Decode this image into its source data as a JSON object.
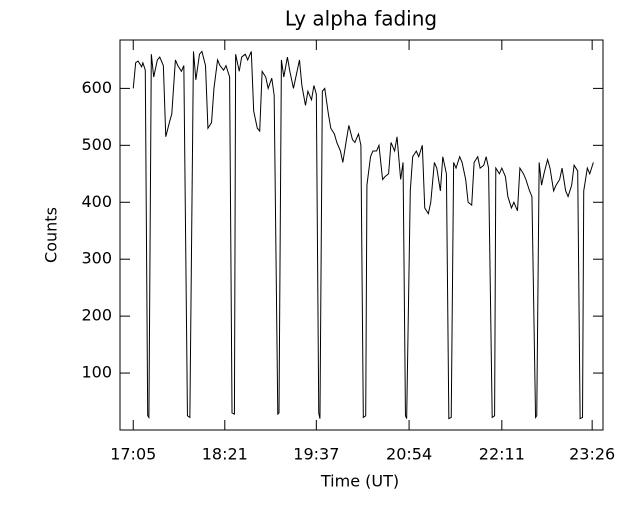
{
  "chart_data": {
    "type": "line",
    "title": "Ly alpha fading",
    "x_label": "Time (UT)",
    "y_label": "Counts",
    "color": "#000000",
    "xlim": [
      1014,
      1415
    ],
    "ylim": [
      0,
      685
    ],
    "xticks": [
      {
        "value": 1025,
        "label": "17:05"
      },
      {
        "value": 1101,
        "label": "18:21"
      },
      {
        "value": 1177,
        "label": "19:37"
      },
      {
        "value": 1254,
        "label": "20:54"
      },
      {
        "value": 1331,
        "label": "22:11"
      },
      {
        "value": 1406,
        "label": "23:26"
      }
    ],
    "yticks": [
      100,
      200,
      300,
      400,
      500,
      600
    ],
    "x": [
      1025,
      1027,
      1029,
      1032,
      1033,
      1035,
      1037,
      1038,
      1040,
      1042,
      1045,
      1047,
      1050,
      1052,
      1055,
      1057,
      1060,
      1062,
      1065,
      1067,
      1070,
      1072,
      1075,
      1077,
      1080,
      1082,
      1085,
      1087,
      1090,
      1092,
      1095,
      1097,
      1100,
      1102,
      1105,
      1107,
      1109,
      1110,
      1113,
      1115,
      1118,
      1120,
      1123,
      1125,
      1128,
      1130,
      1132,
      1135,
      1137,
      1140,
      1142,
      1145,
      1146,
      1148,
      1150,
      1153,
      1155,
      1158,
      1160,
      1163,
      1165,
      1168,
      1170,
      1173,
      1175,
      1177,
      1179,
      1180,
      1182,
      1184,
      1187,
      1189,
      1192,
      1194,
      1197,
      1199,
      1202,
      1204,
      1207,
      1209,
      1212,
      1214,
      1216,
      1218,
      1219,
      1222,
      1224,
      1227,
      1229,
      1232,
      1234,
      1237,
      1239,
      1242,
      1244,
      1247,
      1249,
      1251,
      1252,
      1255,
      1257,
      1260,
      1262,
      1265,
      1267,
      1270,
      1272,
      1275,
      1277,
      1280,
      1282,
      1285,
      1287,
      1289,
      1291,
      1293,
      1296,
      1298,
      1301,
      1303,
      1306,
      1308,
      1311,
      1313,
      1316,
      1318,
      1320,
      1323,
      1325,
      1326,
      1329,
      1331,
      1334,
      1336,
      1339,
      1341,
      1344,
      1346,
      1349,
      1351,
      1354,
      1356,
      1359,
      1360,
      1362,
      1364,
      1366,
      1369,
      1371,
      1374,
      1376,
      1379,
      1381,
      1384,
      1386,
      1389,
      1391,
      1394,
      1396,
      1398,
      1399,
      1402,
      1404,
      1407
    ],
    "values": [
      600,
      645,
      648,
      638,
      645,
      632,
      25,
      22,
      660,
      620,
      650,
      655,
      640,
      515,
      540,
      555,
      650,
      640,
      630,
      640,
      25,
      22,
      665,
      615,
      660,
      665,
      640,
      530,
      540,
      600,
      650,
      640,
      632,
      640,
      620,
      30,
      28,
      660,
      630,
      655,
      660,
      650,
      665,
      560,
      530,
      525,
      630,
      620,
      600,
      618,
      588,
      28,
      30,
      650,
      620,
      655,
      630,
      600,
      620,
      650,
      605,
      570,
      595,
      580,
      605,
      590,
      30,
      20,
      595,
      600,
      555,
      530,
      520,
      505,
      490,
      470,
      510,
      535,
      510,
      505,
      520,
      500,
      22,
      25,
      430,
      480,
      490,
      490,
      500,
      440,
      445,
      450,
      505,
      490,
      515,
      440,
      470,
      25,
      20,
      420,
      480,
      490,
      480,
      500,
      390,
      380,
      400,
      470,
      460,
      420,
      480,
      450,
      20,
      22,
      470,
      460,
      480,
      470,
      440,
      400,
      395,
      470,
      480,
      460,
      465,
      480,
      460,
      22,
      25,
      460,
      450,
      460,
      445,
      410,
      390,
      400,
      385,
      460,
      450,
      440,
      420,
      410,
      22,
      25,
      470,
      430,
      450,
      475,
      460,
      420,
      430,
      440,
      460,
      420,
      410,
      430,
      465,
      455,
      20,
      22,
      420,
      460,
      450,
      470
    ]
  }
}
